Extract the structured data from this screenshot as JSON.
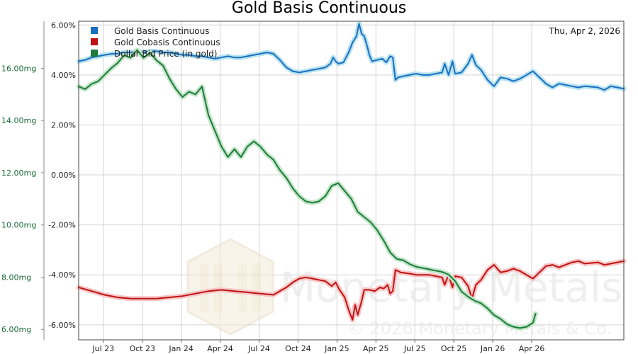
{
  "chart_data": {
    "type": "line",
    "title": "Gold Basis Continuous",
    "date_label": "Thu, Apr 2, 2026",
    "x_tick_labels": [
      "Jul 23",
      "Oct 23",
      "Jan 24",
      "Apr 24",
      "Jul 24",
      "Oct 24",
      "Jan 25",
      "Apr 25",
      "Jul 25",
      "Oct 25",
      "Jan 26",
      "Apr 26"
    ],
    "x_range_months": [
      0,
      42
    ],
    "x_tick_positions_months": [
      1.9,
      4.9,
      7.9,
      10.9,
      13.9,
      16.9,
      19.9,
      22.9,
      25.9,
      28.9,
      31.9,
      34.9
    ],
    "y_right": {
      "label_values": [
        "6.00%",
        "4.00%",
        "2.00%",
        "0.00%",
        "-2.00%",
        "-4.00%",
        "-6.00%"
      ],
      "ticks": [
        6,
        4,
        2,
        0,
        -2,
        -4,
        -6
      ],
      "range": [
        -6.6,
        6.15
      ]
    },
    "y_left": {
      "label_values": [
        "16.00mg",
        "14.00mg",
        "12.00mg",
        "10.00mg",
        "8.00mg",
        "6.00mg"
      ],
      "ticks": [
        16,
        14,
        12,
        10,
        8,
        6
      ],
      "range": [
        5.6,
        17.8
      ]
    },
    "series": [
      {
        "name": "Gold Basis Continuous",
        "color": "#1a6fc0",
        "glow": "#b9e3f0",
        "axis": "right",
        "points": [
          [
            0,
            4.55
          ],
          [
            0.5,
            4.6
          ],
          [
            1,
            4.7
          ],
          [
            1.5,
            4.75
          ],
          [
            2,
            4.8
          ],
          [
            2.6,
            4.85
          ],
          [
            3,
            4.85
          ],
          [
            3.5,
            4.9
          ],
          [
            4,
            4.9
          ],
          [
            4.5,
            4.95
          ],
          [
            5,
            4.9
          ],
          [
            5.5,
            4.95
          ],
          [
            6,
            4.95
          ],
          [
            6.5,
            4.9
          ],
          [
            7,
            4.9
          ],
          [
            7.5,
            4.85
          ],
          [
            8,
            4.8
          ],
          [
            8.5,
            4.8
          ],
          [
            9,
            4.75
          ],
          [
            9.5,
            4.75
          ],
          [
            10,
            4.7
          ],
          [
            10.5,
            4.65
          ],
          [
            11,
            4.7
          ],
          [
            11.5,
            4.75
          ],
          [
            12,
            4.7
          ],
          [
            12.5,
            4.7
          ],
          [
            13,
            4.75
          ],
          [
            13.5,
            4.8
          ],
          [
            14,
            4.85
          ],
          [
            14.5,
            4.9
          ],
          [
            15,
            4.85
          ],
          [
            15.5,
            4.6
          ],
          [
            16,
            4.3
          ],
          [
            16.5,
            4.15
          ],
          [
            17,
            4.1
          ],
          [
            17.5,
            4.15
          ],
          [
            18,
            4.2
          ],
          [
            18.5,
            4.25
          ],
          [
            19,
            4.3
          ],
          [
            19.4,
            4.45
          ],
          [
            19.6,
            4.7
          ],
          [
            19.8,
            4.55
          ],
          [
            20,
            4.45
          ],
          [
            20.4,
            4.5
          ],
          [
            20.8,
            4.9
          ],
          [
            21.1,
            5.3
          ],
          [
            21.4,
            5.55
          ],
          [
            21.6,
            6.05
          ],
          [
            21.8,
            5.65
          ],
          [
            22,
            5.55
          ],
          [
            22.2,
            5.2
          ],
          [
            22.4,
            4.8
          ],
          [
            22.6,
            4.55
          ],
          [
            23,
            4.6
          ],
          [
            23.4,
            4.65
          ],
          [
            23.7,
            4.5
          ],
          [
            24,
            4.75
          ],
          [
            24.2,
            4.7
          ],
          [
            24.4,
            3.8
          ],
          [
            24.6,
            3.9
          ],
          [
            25,
            3.95
          ],
          [
            25.5,
            4.0
          ],
          [
            26,
            4.05
          ],
          [
            26.5,
            4.0
          ],
          [
            27,
            4.0
          ],
          [
            27.5,
            4.05
          ],
          [
            28,
            4.1
          ],
          [
            28.2,
            4.45
          ],
          [
            28.5,
            4.0
          ],
          [
            28.8,
            4.55
          ],
          [
            29,
            4.05
          ],
          [
            29.5,
            4.1
          ],
          [
            30,
            4.45
          ],
          [
            30.3,
            4.8
          ],
          [
            30.6,
            4.4
          ],
          [
            31,
            4.2
          ],
          [
            31.5,
            3.8
          ],
          [
            32,
            3.55
          ],
          [
            32.5,
            3.9
          ],
          [
            33,
            3.85
          ],
          [
            33.5,
            3.75
          ],
          [
            34,
            3.85
          ],
          [
            34.5,
            4.0
          ],
          [
            35,
            4.15
          ],
          [
            35.5,
            3.9
          ],
          [
            36,
            3.65
          ],
          [
            36.5,
            3.5
          ],
          [
            37,
            3.65
          ],
          [
            37.5,
            3.6
          ],
          [
            38,
            3.55
          ],
          [
            38.5,
            3.5
          ],
          [
            39,
            3.55
          ],
          [
            40,
            3.5
          ],
          [
            40.5,
            3.4
          ],
          [
            41,
            3.55
          ],
          [
            41.5,
            3.5
          ],
          [
            42,
            3.45
          ]
        ]
      },
      {
        "name": "Gold Cobasis Continuous",
        "color": "#c01212",
        "glow": "#f7c7c7",
        "axis": "right",
        "points": [
          [
            0,
            -4.5
          ],
          [
            1,
            -4.65
          ],
          [
            2,
            -4.8
          ],
          [
            3,
            -4.9
          ],
          [
            4,
            -4.95
          ],
          [
            5,
            -4.95
          ],
          [
            6,
            -4.95
          ],
          [
            7,
            -4.9
          ],
          [
            8,
            -4.85
          ],
          [
            9,
            -4.75
          ],
          [
            10,
            -4.65
          ],
          [
            11,
            -4.6
          ],
          [
            12,
            -4.65
          ],
          [
            13,
            -4.7
          ],
          [
            14,
            -4.75
          ],
          [
            15,
            -4.8
          ],
          [
            16,
            -4.5
          ],
          [
            16.5,
            -4.3
          ],
          [
            17,
            -4.15
          ],
          [
            17.5,
            -4.1
          ],
          [
            18,
            -4.15
          ],
          [
            18.5,
            -4.2
          ],
          [
            19,
            -4.25
          ],
          [
            19.5,
            -4.45
          ],
          [
            19.8,
            -4.3
          ],
          [
            20.1,
            -4.6
          ],
          [
            20.5,
            -4.9
          ],
          [
            20.8,
            -5.4
          ],
          [
            21.1,
            -5.8
          ],
          [
            21.3,
            -5.2
          ],
          [
            21.5,
            -5.6
          ],
          [
            21.8,
            -5.05
          ],
          [
            22,
            -4.6
          ],
          [
            22.4,
            -4.6
          ],
          [
            22.8,
            -4.65
          ],
          [
            23.2,
            -4.5
          ],
          [
            23.5,
            -4.55
          ],
          [
            23.8,
            -4.4
          ],
          [
            24,
            -4.75
          ],
          [
            24.2,
            -4.65
          ],
          [
            24.4,
            -3.8
          ],
          [
            24.8,
            -3.9
          ],
          [
            25.5,
            -3.95
          ],
          [
            26,
            -4.0
          ],
          [
            26.5,
            -4.0
          ],
          [
            27,
            -4.0
          ],
          [
            27.5,
            -4.05
          ],
          [
            28,
            -4.1
          ],
          [
            28.2,
            -4.4
          ],
          [
            28.5,
            -4.0
          ],
          [
            28.8,
            -4.5
          ],
          [
            29,
            -4.05
          ],
          [
            29.5,
            -4.1
          ],
          [
            30,
            -4.45
          ],
          [
            30.3,
            -4.95
          ],
          [
            30.6,
            -4.4
          ],
          [
            31,
            -4.2
          ],
          [
            31.5,
            -3.8
          ],
          [
            32,
            -3.6
          ],
          [
            32.5,
            -3.9
          ],
          [
            33,
            -3.85
          ],
          [
            33.5,
            -3.75
          ],
          [
            34,
            -3.85
          ],
          [
            34.5,
            -4.0
          ],
          [
            35,
            -4.15
          ],
          [
            35.5,
            -3.9
          ],
          [
            36,
            -3.65
          ],
          [
            36.5,
            -3.6
          ],
          [
            37,
            -3.7
          ],
          [
            37.5,
            -3.6
          ],
          [
            38,
            -3.5
          ],
          [
            38.5,
            -3.45
          ],
          [
            39,
            -3.55
          ],
          [
            40,
            -3.5
          ],
          [
            40.5,
            -3.6
          ],
          [
            41,
            -3.55
          ],
          [
            41.5,
            -3.5
          ],
          [
            42,
            -3.45
          ]
        ]
      },
      {
        "name": "Dollar Bid Price (in gold)",
        "color": "#1e7a3a",
        "glow": "#c3e6c9",
        "axis": "left",
        "points": [
          [
            0,
            15.3
          ],
          [
            0.5,
            15.2
          ],
          [
            1,
            15.4
          ],
          [
            1.5,
            15.5
          ],
          [
            2,
            15.75
          ],
          [
            2.5,
            16.0
          ],
          [
            3,
            16.2
          ],
          [
            3.5,
            16.5
          ],
          [
            4,
            16.4
          ],
          [
            4.5,
            16.7
          ],
          [
            5,
            16.4
          ],
          [
            5.5,
            16.6
          ],
          [
            6,
            16.3
          ],
          [
            6.5,
            16.1
          ],
          [
            7,
            15.6
          ],
          [
            7.5,
            15.2
          ],
          [
            8,
            14.9
          ],
          [
            8.5,
            15.1
          ],
          [
            9,
            15.0
          ],
          [
            9.5,
            15.3
          ],
          [
            10,
            14.2
          ],
          [
            10.5,
            13.6
          ],
          [
            11,
            13.0
          ],
          [
            11.5,
            12.6
          ],
          [
            12,
            12.9
          ],
          [
            12.5,
            12.6
          ],
          [
            13,
            13.0
          ],
          [
            13.5,
            13.2
          ],
          [
            14,
            13.0
          ],
          [
            14.5,
            12.7
          ],
          [
            15,
            12.5
          ],
          [
            15.5,
            12.1
          ],
          [
            16,
            11.8
          ],
          [
            16.5,
            11.4
          ],
          [
            17,
            11.1
          ],
          [
            17.5,
            10.9
          ],
          [
            18,
            10.85
          ],
          [
            18.5,
            10.9
          ],
          [
            19,
            11.1
          ],
          [
            19.5,
            11.5
          ],
          [
            20,
            11.6
          ],
          [
            20.5,
            11.3
          ],
          [
            21,
            11.0
          ],
          [
            21.5,
            10.5
          ],
          [
            22,
            10.3
          ],
          [
            22.5,
            10.1
          ],
          [
            23,
            9.8
          ],
          [
            23.5,
            9.4
          ],
          [
            24,
            8.95
          ],
          [
            24.5,
            8.7
          ],
          [
            25,
            8.65
          ],
          [
            25.5,
            8.5
          ],
          [
            26,
            8.4
          ],
          [
            26.5,
            8.35
          ],
          [
            27,
            8.3
          ],
          [
            27.5,
            8.25
          ],
          [
            28,
            8.2
          ],
          [
            28.5,
            8.1
          ],
          [
            29,
            7.85
          ],
          [
            29.5,
            7.45
          ],
          [
            30,
            7.25
          ],
          [
            30.5,
            7.1
          ],
          [
            31,
            7.0
          ],
          [
            31.5,
            6.8
          ],
          [
            32,
            6.55
          ],
          [
            32.5,
            6.4
          ],
          [
            33,
            6.2
          ],
          [
            33.5,
            6.1
          ],
          [
            34,
            6.05
          ],
          [
            34.5,
            6.1
          ],
          [
            35,
            6.25
          ],
          [
            35.2,
            6.6
          ]
        ]
      }
    ]
  },
  "watermark": {
    "brand": "Monetary Metals",
    "copyright": "© 2026 Monetary Metals & Co."
  }
}
